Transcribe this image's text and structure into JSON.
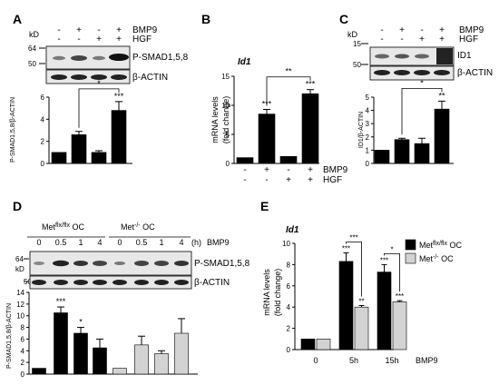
{
  "panels": {
    "A": {
      "label": "A",
      "kd": "kD",
      "markers": [
        "64",
        "50"
      ],
      "treatments": [
        {
          "name": "BMP9",
          "signs": [
            "-",
            "+",
            "-",
            "+"
          ]
        },
        {
          "name": "HGF",
          "signs": [
            "-",
            "-",
            "+",
            "+"
          ]
        }
      ],
      "blots": [
        "P-SMAD1,5,8",
        "β-ACTIN"
      ]
    },
    "B": {
      "label": "B",
      "gene": "Id1",
      "treatments": [
        {
          "name": "BMP9",
          "signs": [
            "-",
            "+",
            "-",
            "+"
          ]
        },
        {
          "name": "HGF",
          "signs": [
            "-",
            "-",
            "+",
            "+"
          ]
        }
      ]
    },
    "C": {
      "label": "C",
      "kd": "kD",
      "markers": [
        "15",
        "50"
      ],
      "treatments": [
        {
          "name": "BMP9",
          "signs": [
            "-",
            "+",
            "-",
            "+"
          ]
        },
        {
          "name": "HGF",
          "signs": [
            "-",
            "-",
            "+",
            "+"
          ]
        }
      ],
      "blots": [
        "ID1",
        "β-ACTIN"
      ]
    },
    "D": {
      "label": "D",
      "kd": "kD",
      "markers": [
        "64",
        "50"
      ],
      "group_a": "Met",
      "group_a_sup": "flx/flx",
      "group_a_suffix": " OC",
      "group_b": "Met",
      "group_b_sup": "-/-",
      "group_b_suffix": " OC",
      "times": [
        "0",
        "0.5",
        "1",
        "4",
        "0",
        "0.5",
        "1",
        "4"
      ],
      "time_unit": "(h)",
      "treatment": "BMP9",
      "blots": [
        "P-SMAD1,5,8",
        "β-ACTIN"
      ]
    },
    "E": {
      "label": "E",
      "gene": "Id1"
    }
  },
  "chart_data": [
    {
      "id": "A",
      "type": "bar",
      "categories": [
        "1",
        "2",
        "3",
        "4"
      ],
      "values": [
        1.0,
        2.6,
        1.0,
        4.8
      ],
      "errors": [
        0,
        0.3,
        0.15,
        0.8
      ],
      "ylabel": "P-SMAD1,5,8/β-ACTIN",
      "ylim": [
        0,
        6
      ],
      "yticks": [
        "0",
        "2",
        "4",
        "6"
      ],
      "bar_color": "#000000",
      "sig_labels": [
        "",
        "",
        "",
        "***"
      ],
      "bracket": {
        "from": 1,
        "to": 3,
        "label": "*"
      }
    },
    {
      "id": "B",
      "type": "bar",
      "categories": [
        "1",
        "2",
        "3",
        "4"
      ],
      "values": [
        1.0,
        8.5,
        1.2,
        12.0
      ],
      "errors": [
        0,
        0.8,
        0,
        0.7
      ],
      "ylabel": "mRNA levels",
      "ylabel2": "(fold change)",
      "ylim": [
        0,
        15
      ],
      "yticks": [
        "0",
        "5",
        "10",
        "15"
      ],
      "bar_color": "#000000",
      "sig_labels": [
        "",
        "***",
        "",
        "***"
      ],
      "bracket": {
        "from": 1,
        "to": 3,
        "label": "**"
      }
    },
    {
      "id": "C",
      "type": "bar",
      "categories": [
        "1",
        "2",
        "3",
        "4"
      ],
      "values": [
        1.0,
        1.8,
        1.5,
        4.1
      ],
      "errors": [
        0,
        0.1,
        0.4,
        0.6
      ],
      "ylabel": "ID1/β-ACTIN",
      "ylim": [
        0,
        5
      ],
      "yticks": [
        "0",
        "1",
        "2",
        "3",
        "4",
        "5"
      ],
      "bar_color": "#000000",
      "sig_labels": [
        "",
        "",
        "",
        "**"
      ],
      "bracket": {
        "from": 1,
        "to": 3,
        "label": "*"
      }
    },
    {
      "id": "D",
      "type": "bar",
      "categories": [
        "0",
        "0.5",
        "1",
        "4",
        "0",
        "0.5",
        "1",
        "4"
      ],
      "values": [
        1.0,
        10.5,
        7.0,
        4.5,
        1.0,
        5.0,
        3.5,
        7.0
      ],
      "errors": [
        0,
        1.0,
        1.0,
        1.5,
        0,
        1.5,
        0.5,
        2.5
      ],
      "colors": [
        "#000000",
        "#000000",
        "#000000",
        "#000000",
        "#d3d3d3",
        "#d3d3d3",
        "#d3d3d3",
        "#d3d3d3"
      ],
      "ylabel": "P-SMAD1,5,8/β-ACTIN",
      "ylim": [
        0,
        14
      ],
      "yticks": [
        "0",
        "2",
        "4",
        "6",
        "8",
        "10",
        "12",
        "14"
      ],
      "sig_labels": [
        "",
        "***",
        "*",
        "",
        "",
        "",
        "",
        ""
      ]
    },
    {
      "id": "E",
      "type": "bar",
      "categories": [
        "0",
        "5h",
        "15h"
      ],
      "xlabel": "BMP9",
      "ylabel": "mRNA levels",
      "ylabel2": "(fold change)",
      "ylim": [
        0,
        10
      ],
      "yticks": [
        "0",
        "2",
        "4",
        "6",
        "8",
        "10"
      ],
      "series": [
        {
          "name": "Met",
          "name_sup": "flx/flx",
          "name_suffix": " OC",
          "color": "#000000",
          "values": [
            1.0,
            8.3,
            7.3
          ],
          "errors": [
            0,
            0.8,
            0.7
          ],
          "sig": [
            "",
            "***",
            "***"
          ]
        },
        {
          "name": "Met",
          "name_sup": "-/-",
          "name_suffix": " OC",
          "color": "#d3d3d3",
          "values": [
            1.0,
            4.0,
            4.5
          ],
          "errors": [
            0,
            0.15,
            0.1
          ],
          "sig": [
            "",
            "**",
            "***"
          ]
        }
      ],
      "brackets": [
        {
          "group": 1,
          "label": "***"
        },
        {
          "group": 2,
          "label": "*"
        }
      ]
    }
  ]
}
